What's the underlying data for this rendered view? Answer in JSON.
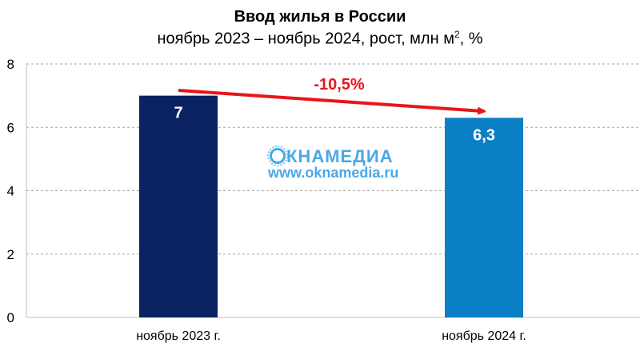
{
  "chart_data": {
    "type": "bar",
    "title": "Ввод жилья в России",
    "subtitle": "ноябрь 2023 – ноябрь 2024, рост, млн м",
    "subtitle_sup": "2",
    "subtitle_tail": ", %",
    "categories": [
      "ноябрь 2023 г.",
      "ноябрь 2024 г."
    ],
    "values": [
      7,
      6.3
    ],
    "data_labels": [
      "7",
      "6,3"
    ],
    "bar_colors": [
      "#0b2260",
      "#0a7fc6"
    ],
    "ylim": [
      0,
      8
    ],
    "yticks": [
      0,
      2,
      4,
      6,
      8
    ],
    "grid": true,
    "annotation": {
      "text": "-10,5%",
      "color": "#e8151b",
      "from_category": 0,
      "to_category": 1
    },
    "xlabel": "",
    "ylabel": ""
  },
  "watermark": {
    "logo_rest": "КНАМЕДИА",
    "url": "www.oknamedia.ru",
    "color": "#4aa8e6"
  }
}
